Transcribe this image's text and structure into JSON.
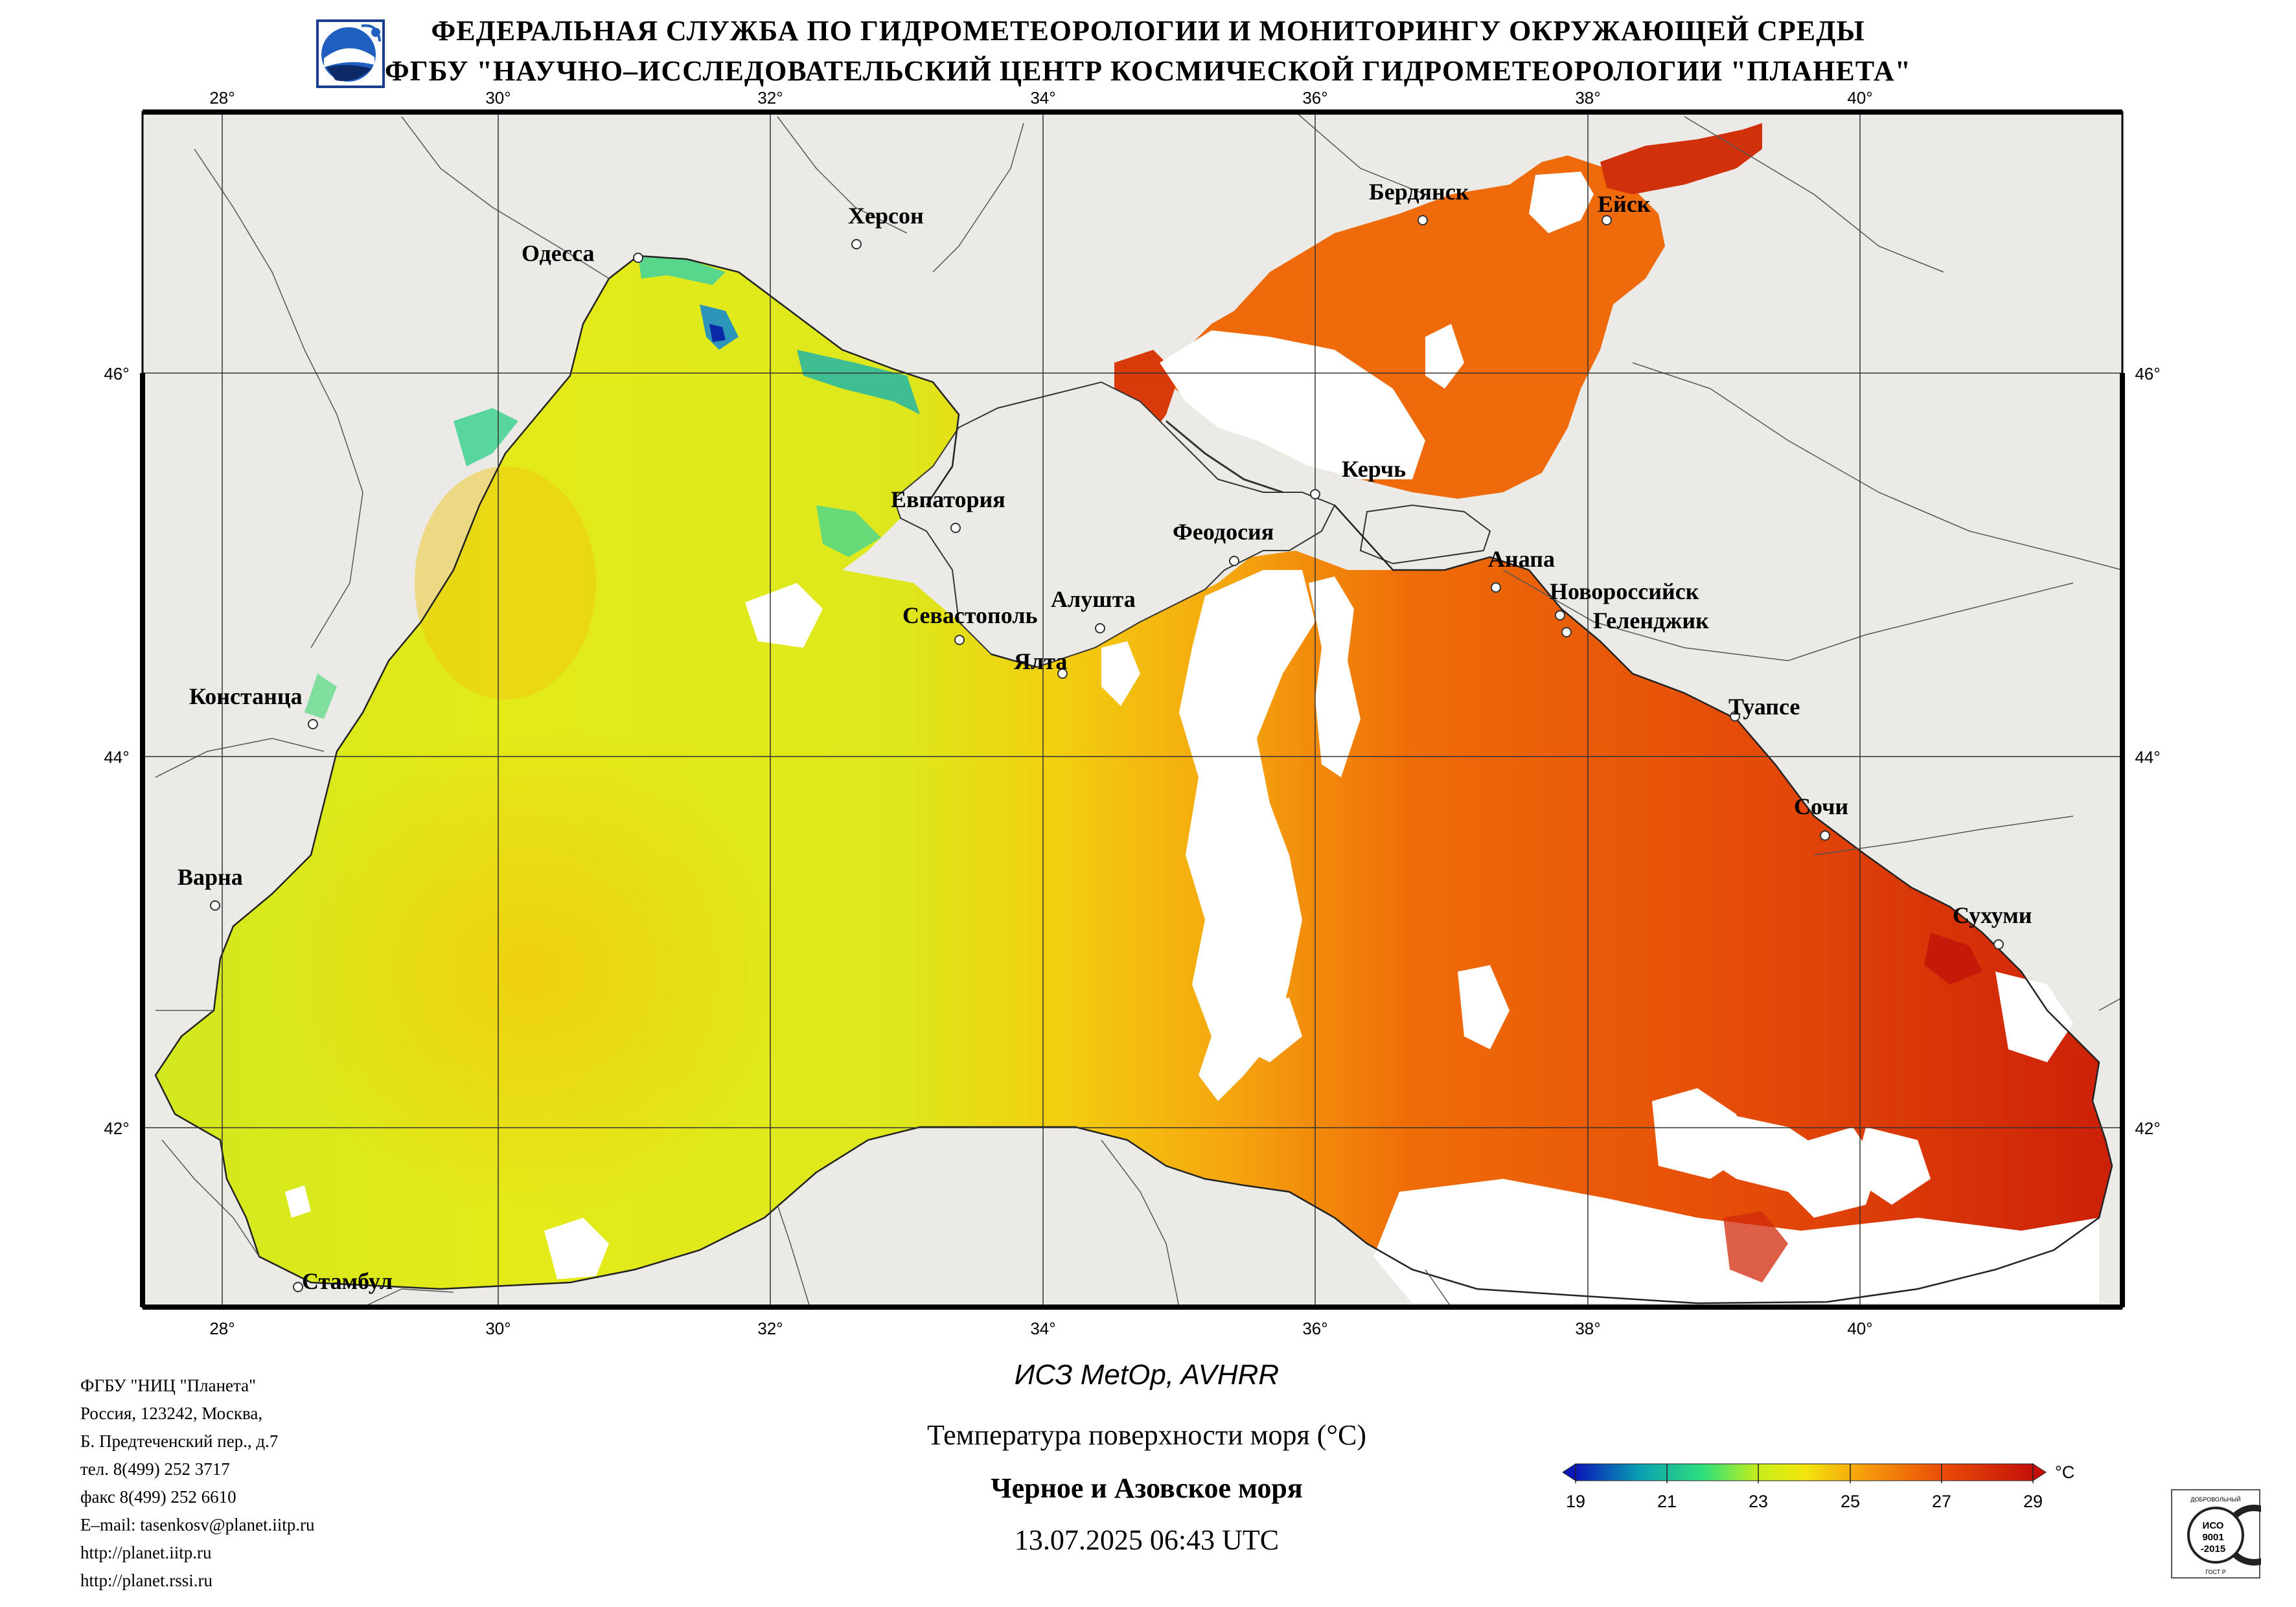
{
  "header": {
    "line1": "ФЕДЕРАЛЬНАЯ СЛУЖБА ПО ГИДРОМЕТЕОРОЛОГИИ И МОНИТОРИНГУ ОКРУЖАЮЩЕЙ СРЕДЫ",
    "line2": "ФГБУ \"НАУЧНО–ИССЛЕДОВАТЕЛЬСКИЙ ЦЕНТР КОСМИЧЕСКОЙ ГИДРОМЕТЕОРОЛОГИИ \"ПЛАНЕТА\""
  },
  "map": {
    "lon_ticks": [
      "28°",
      "30°",
      "32°",
      "34°",
      "36°",
      "38°",
      "40°"
    ],
    "lat_ticks": [
      "46°",
      "44°",
      "42°"
    ],
    "cities": {
      "odessa": "Одесса",
      "kherson": "Херсон",
      "berdyansk": "Бердянск",
      "yeysk": "Ейск",
      "kerch": "Керчь",
      "evpatoria": "Евпатория",
      "feodosia": "Феодосия",
      "anapa": "Анапа",
      "novorossiysk": "Новороссийск",
      "gelendzhik": "Геленджик",
      "sevastopol": "Севастополь",
      "alushta": "Алушта",
      "yalta": "Ялта",
      "constanta": "Констанца",
      "tuapse": "Туапсе",
      "sochi": "Сочи",
      "varna": "Варна",
      "sukhumi": "Сухуми",
      "istanbul": "Стамбул"
    }
  },
  "info": {
    "org": "ФГБУ \"НИЦ \"Планета\"",
    "addr1": "Россия, 123242, Москва,",
    "addr2": "Б. Предтеченский пер., д.7",
    "tel": "тел. 8(499) 252 3717",
    "fax": "факс 8(499) 252 6610",
    "email": "E–mail: tasenkosv@planet.iitp.ru",
    "url1": "http://planet.iitp.ru",
    "url2": "http://planet.rssi.ru"
  },
  "caption": {
    "satellite": "ИСЗ MetOp, AVHRR",
    "product": "Температура поверхности моря (°C)",
    "region": "Черное и Азовское моря",
    "datetime": "13.07.2025 06:43 UTC"
  },
  "colorbar": {
    "unit": "°C",
    "ticks": [
      "19",
      "21",
      "23",
      "25",
      "27",
      "29"
    ],
    "min": 19,
    "max": 29,
    "colors": [
      "#0a16b8",
      "#0aa0b4",
      "#2fe07a",
      "#c8ee1c",
      "#f2e60e",
      "#f7a20c",
      "#ea4e08",
      "#c4100a"
    ]
  },
  "certificate": {
    "top": "ДОБРОВОЛЬНЫЙ",
    "iso": "ИСО",
    "num": "9001",
    "year": "-2015",
    "bottom": "ГОСТ Р"
  }
}
